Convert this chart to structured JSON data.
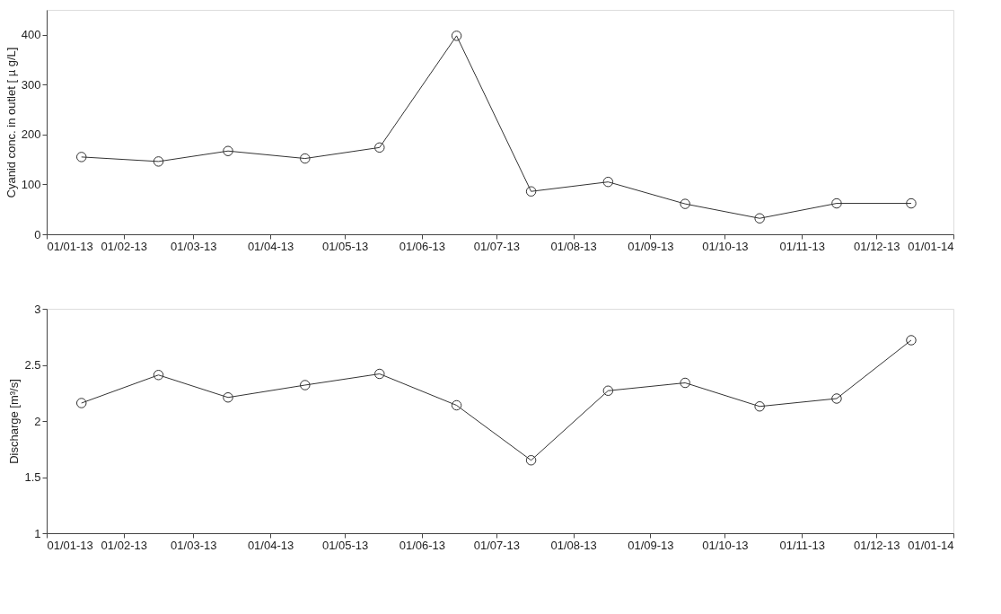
{
  "chart_data": [
    {
      "type": "line",
      "ylabel": "Cyanid conc. in outlet [ µ g/L]",
      "marker": "circle",
      "line_style": "solid",
      "grid": false,
      "legend": false,
      "x": [
        "2013-01-15",
        "2013-02-15",
        "2013-03-15",
        "2013-04-15",
        "2013-05-15",
        "2013-06-15",
        "2013-07-15",
        "2013-08-15",
        "2013-09-15",
        "2013-10-15",
        "2013-11-15",
        "2013-12-15"
      ],
      "series": [
        {
          "color": "#333333",
          "values": [
            155,
            146,
            167,
            152,
            174,
            398,
            86,
            105,
            61,
            32,
            62,
            62
          ]
        }
      ],
      "xlim": [
        "2013-01-01",
        "2014-01-01"
      ],
      "xticks": [
        {
          "value": "2013-01-01",
          "label": "01/01-13"
        },
        {
          "value": "2013-02-01",
          "label": "01/02-13"
        },
        {
          "value": "2013-03-01",
          "label": "01/03-13"
        },
        {
          "value": "2013-04-01",
          "label": "01/04-13"
        },
        {
          "value": "2013-05-01",
          "label": "01/05-13"
        },
        {
          "value": "2013-06-01",
          "label": "01/06-13"
        },
        {
          "value": "2013-07-01",
          "label": "01/07-13"
        },
        {
          "value": "2013-08-01",
          "label": "01/08-13"
        },
        {
          "value": "2013-09-01",
          "label": "01/09-13"
        },
        {
          "value": "2013-10-01",
          "label": "01/10-13"
        },
        {
          "value": "2013-11-01",
          "label": "01/11-13"
        },
        {
          "value": "2013-12-01",
          "label": "01/12-13"
        },
        {
          "value": "2014-01-01",
          "label": "01/01-14"
        }
      ],
      "ylim": [
        0,
        450
      ],
      "yticks": [
        0,
        100,
        200,
        300,
        400
      ]
    },
    {
      "type": "line",
      "ylabel": "Discharge [m³/s]",
      "marker": "circle",
      "line_style": "solid",
      "grid": false,
      "legend": false,
      "x": [
        "2013-01-15",
        "2013-02-15",
        "2013-03-15",
        "2013-04-15",
        "2013-05-15",
        "2013-06-15",
        "2013-07-15",
        "2013-08-15",
        "2013-09-15",
        "2013-10-15",
        "2013-11-15",
        "2013-12-15"
      ],
      "series": [
        {
          "color": "#333333",
          "values": [
            2.16,
            2.41,
            2.21,
            2.32,
            2.42,
            2.14,
            1.65,
            2.27,
            2.34,
            2.13,
            2.2,
            2.72
          ]
        }
      ],
      "xlim": [
        "2013-01-01",
        "2014-01-01"
      ],
      "xticks": [
        {
          "value": "2013-01-01",
          "label": "01/01-13"
        },
        {
          "value": "2013-02-01",
          "label": "01/02-13"
        },
        {
          "value": "2013-03-01",
          "label": "01/03-13"
        },
        {
          "value": "2013-04-01",
          "label": "01/04-13"
        },
        {
          "value": "2013-05-01",
          "label": "01/05-13"
        },
        {
          "value": "2013-06-01",
          "label": "01/06-13"
        },
        {
          "value": "2013-07-01",
          "label": "01/07-13"
        },
        {
          "value": "2013-08-01",
          "label": "01/08-13"
        },
        {
          "value": "2013-09-01",
          "label": "01/09-13"
        },
        {
          "value": "2013-10-01",
          "label": "01/10-13"
        },
        {
          "value": "2013-11-01",
          "label": "01/11-13"
        },
        {
          "value": "2013-12-01",
          "label": "01/12-13"
        },
        {
          "value": "2014-01-01",
          "label": "01/01-14"
        }
      ],
      "ylim": [
        1,
        3
      ],
      "yticks": [
        1,
        1.5,
        2,
        2.5,
        3
      ]
    }
  ]
}
